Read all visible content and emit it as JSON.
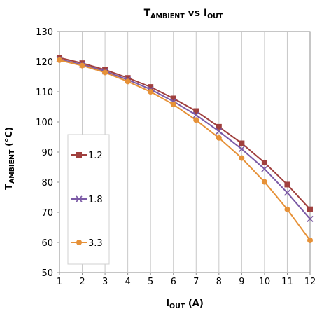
{
  "chart_data": {
    "type": "line",
    "title": {
      "pre": "T",
      "pre_sub": "AMBIENT",
      "mid": " vs I",
      "post_sub": "OUT"
    },
    "xlabel": {
      "pre": "I",
      "pre_sub": "OUT",
      "post": " (A)"
    },
    "ylabel": {
      "pre": "T",
      "pre_sub": "AMBIENT",
      "post": " (°C)"
    },
    "x": [
      1,
      2,
      3,
      4,
      5,
      6,
      7,
      8,
      9,
      10,
      11,
      12
    ],
    "xlim": [
      1,
      12
    ],
    "ylim": [
      50,
      130
    ],
    "yticks": [
      50,
      60,
      70,
      80,
      90,
      100,
      110,
      120,
      130
    ],
    "grid": "vertical",
    "legend_position": "left",
    "series": [
      {
        "name": "1.2",
        "color": "#a0403e",
        "marker": "square",
        "values": [
          121.3,
          119.5,
          117.3,
          114.6,
          111.6,
          107.8,
          103.6,
          98.4,
          92.9,
          86.5,
          79.2,
          71.0
        ]
      },
      {
        "name": "1.8",
        "color": "#7b5aa6",
        "marker": "x",
        "values": [
          120.8,
          119.0,
          116.8,
          114.0,
          110.8,
          106.8,
          102.3,
          96.9,
          91.0,
          84.4,
          76.5,
          67.8
        ]
      },
      {
        "name": "3.3",
        "color": "#e69138",
        "marker": "circle",
        "values": [
          120.5,
          118.7,
          116.4,
          113.4,
          110.0,
          105.8,
          100.6,
          94.7,
          88.0,
          80.1,
          71.0,
          60.7
        ]
      }
    ]
  }
}
